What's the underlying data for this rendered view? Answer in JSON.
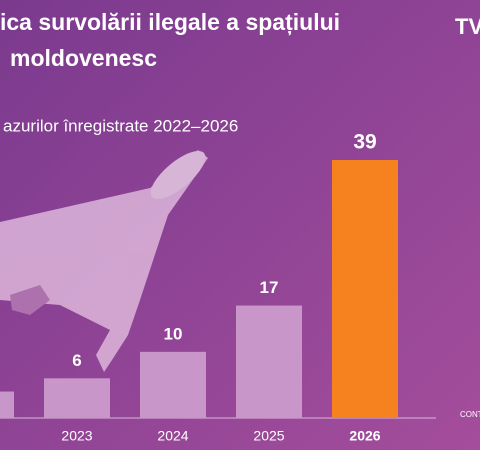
{
  "chart_data": {
    "type": "bar",
    "title": [
      "ica survolării ilegale a spațiului",
      "moldovenesc"
    ],
    "subtitle": "azurilor înregistrate 2022–2026",
    "brand": "TV",
    "source": "CONT",
    "categories": [
      null,
      "2023",
      "2024",
      "2025",
      "2026"
    ],
    "values": [
      4,
      6,
      10,
      17,
      39
    ],
    "color": "#c896c9",
    "highlight_color": "#f5821f",
    "highlight": 4
  }
}
